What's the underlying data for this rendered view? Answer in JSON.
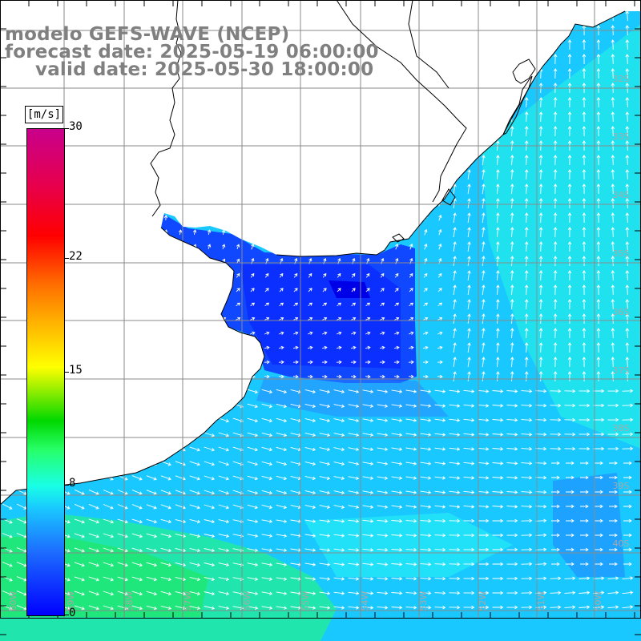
{
  "title": {
    "line1": "modelo GEFS-WAVE (NCEP)",
    "line2": "forecast date: 2025-05-19 06:00:00",
    "line3": "valid date: 2025-05-30 18:00:00"
  },
  "colorbar": {
    "unit": "[m/s]",
    "min": 0,
    "max": 30,
    "ticks": [
      "30",
      "22",
      "15",
      "8",
      "0"
    ],
    "tick_values": [
      30,
      22,
      15,
      8,
      0
    ]
  },
  "axes": {
    "lat_labels": [
      "32S",
      "33S",
      "34S",
      "35S",
      "36S",
      "37S",
      "38S",
      "39S",
      "40S"
    ],
    "lon_labels": [
      "60W",
      "59W",
      "58W",
      "57W",
      "56W",
      "55W",
      "54W",
      "53W",
      "52W",
      "51W",
      "50W"
    ]
  },
  "colors": {
    "calm": "#0000ff",
    "moderate": "#19c8ff",
    "fresh": "#19ffe6",
    "strong": "#27ff6a",
    "land": "#ffffff",
    "grid": "#808080",
    "arrow": "#ffffff",
    "coastline": "#000000"
  }
}
